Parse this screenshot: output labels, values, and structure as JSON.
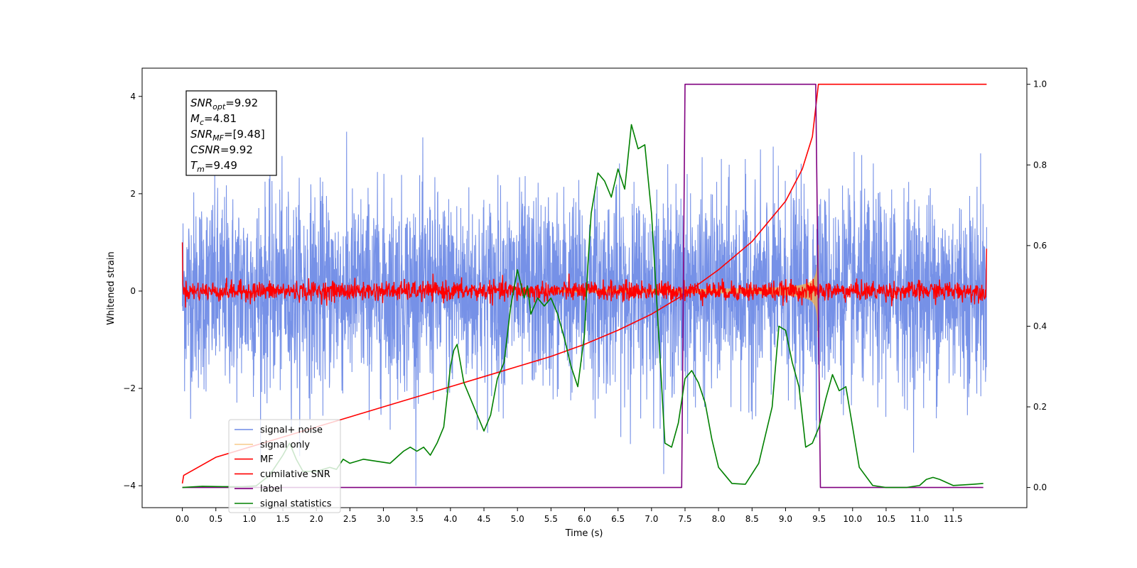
{
  "chart_data": {
    "type": "line",
    "title": "",
    "xlabel": "Time (s)",
    "ylabel": "Whitened strain",
    "xlim": [
      -0.6,
      12.6
    ],
    "ylim": [
      -4.45,
      4.58
    ],
    "y2lim": [
      -0.05,
      1.04
    ],
    "x_ticks": [
      0.0,
      0.5,
      1.0,
      1.5,
      2.0,
      2.5,
      3.0,
      3.5,
      4.0,
      4.5,
      5.0,
      5.5,
      6.0,
      6.5,
      7.0,
      7.5,
      8.0,
      8.5,
      9.0,
      9.5,
      10.0,
      10.5,
      11.0,
      11.5
    ],
    "x_tick_labels": [
      "0.0",
      "0.5",
      "1.0",
      "1.5",
      "2.0",
      "2.5",
      "3.0",
      "3.5",
      "4.0",
      "4.5",
      "5.0",
      "5.5",
      "6.0",
      "6.5",
      "7.0",
      "7.5",
      "8.0",
      "8.5",
      "9.0",
      "9.5",
      "10.0",
      "10.5",
      "11.0",
      "11.5"
    ],
    "y_ticks": [
      -4,
      -2,
      0,
      2,
      4
    ],
    "y_tick_labels": [
      "−4",
      "−2",
      "0",
      "2",
      "4"
    ],
    "y2_ticks": [
      0.0,
      0.2,
      0.4,
      0.6,
      0.8,
      1.0
    ],
    "y2_tick_labels": [
      "0.0",
      "0.2",
      "0.4",
      "0.6",
      "0.8",
      "1.0"
    ],
    "grid": false,
    "legend_position": "lower-left",
    "series": [
      {
        "name": "signal+ noise",
        "axis": "left",
        "color": "#6f8be6",
        "style": "noise",
        "x_range": [
          0.0,
          12.0
        ],
        "sigma": 1.0,
        "max_peak": 4.18,
        "min_peak": -4.0
      },
      {
        "name": "signal only",
        "axis": "left",
        "color": "#f5b04c",
        "style": "chirp",
        "x_range": [
          5.5,
          9.49
        ],
        "amplitude_at_merger": 0.95
      },
      {
        "name": "MF",
        "axis": "left",
        "color": "#ff0000",
        "style": "matched-filter",
        "x_range": [
          0.0,
          12.0
        ],
        "sigma": 0.1,
        "edge_values": [
          1.0,
          0.87
        ]
      },
      {
        "name": "cumilative SNR",
        "axis": "right",
        "color": "#ff0000",
        "points": [
          [
            0.0,
            0.01
          ],
          [
            0.02,
            0.03
          ],
          [
            0.5,
            0.075
          ],
          [
            1.0,
            0.1
          ],
          [
            1.5,
            0.125
          ],
          [
            2.0,
            0.15
          ],
          [
            2.5,
            0.175
          ],
          [
            3.0,
            0.2
          ],
          [
            3.5,
            0.225
          ],
          [
            4.0,
            0.25
          ],
          [
            4.5,
            0.275
          ],
          [
            5.0,
            0.3
          ],
          [
            5.5,
            0.325
          ],
          [
            6.0,
            0.355
          ],
          [
            6.5,
            0.39
          ],
          [
            7.0,
            0.43
          ],
          [
            7.5,
            0.48
          ],
          [
            8.0,
            0.54
          ],
          [
            8.5,
            0.61
          ],
          [
            9.0,
            0.71
          ],
          [
            9.25,
            0.79
          ],
          [
            9.4,
            0.87
          ],
          [
            9.49,
            1.0
          ],
          [
            12.0,
            1.0
          ]
        ]
      },
      {
        "name": "label",
        "axis": "right",
        "color": "#800080",
        "points": [
          [
            0.0,
            0.0
          ],
          [
            7.45,
            0.0
          ],
          [
            7.5,
            1.0
          ],
          [
            9.45,
            1.0
          ],
          [
            9.52,
            0.0
          ],
          [
            11.95,
            0.0
          ]
        ]
      },
      {
        "name": "signal statistics",
        "axis": "right",
        "color": "#008000",
        "points": [
          [
            0.0,
            0.0
          ],
          [
            0.3,
            0.003
          ],
          [
            0.6,
            0.002
          ],
          [
            0.9,
            0.002
          ],
          [
            1.1,
            0.004
          ],
          [
            1.3,
            0.03
          ],
          [
            1.5,
            0.08
          ],
          [
            1.6,
            0.11
          ],
          [
            1.7,
            0.07
          ],
          [
            1.8,
            0.04
          ],
          [
            2.0,
            0.04
          ],
          [
            2.2,
            0.05
          ],
          [
            2.3,
            0.045
          ],
          [
            2.4,
            0.07
          ],
          [
            2.5,
            0.06
          ],
          [
            2.7,
            0.07
          ],
          [
            2.9,
            0.065
          ],
          [
            3.1,
            0.06
          ],
          [
            3.2,
            0.075
          ],
          [
            3.3,
            0.09
          ],
          [
            3.4,
            0.1
          ],
          [
            3.5,
            0.09
          ],
          [
            3.6,
            0.1
          ],
          [
            3.7,
            0.08
          ],
          [
            3.8,
            0.11
          ],
          [
            3.9,
            0.15
          ],
          [
            4.0,
            0.3
          ],
          [
            4.05,
            0.34
          ],
          [
            4.1,
            0.355
          ],
          [
            4.2,
            0.26
          ],
          [
            4.3,
            0.22
          ],
          [
            4.4,
            0.18
          ],
          [
            4.5,
            0.14
          ],
          [
            4.6,
            0.18
          ],
          [
            4.7,
            0.27
          ],
          [
            4.8,
            0.31
          ],
          [
            4.9,
            0.45
          ],
          [
            5.0,
            0.54
          ],
          [
            5.1,
            0.47
          ],
          [
            5.15,
            0.5
          ],
          [
            5.2,
            0.43
          ],
          [
            5.3,
            0.47
          ],
          [
            5.4,
            0.45
          ],
          [
            5.5,
            0.47
          ],
          [
            5.6,
            0.43
          ],
          [
            5.7,
            0.37
          ],
          [
            5.8,
            0.3
          ],
          [
            5.9,
            0.25
          ],
          [
            6.0,
            0.38
          ],
          [
            6.05,
            0.55
          ],
          [
            6.1,
            0.68
          ],
          [
            6.2,
            0.78
          ],
          [
            6.3,
            0.76
          ],
          [
            6.4,
            0.72
          ],
          [
            6.5,
            0.79
          ],
          [
            6.6,
            0.74
          ],
          [
            6.7,
            0.9
          ],
          [
            6.8,
            0.84
          ],
          [
            6.9,
            0.85
          ],
          [
            7.0,
            0.68
          ],
          [
            7.1,
            0.4
          ],
          [
            7.2,
            0.11
          ],
          [
            7.3,
            0.1
          ],
          [
            7.4,
            0.16
          ],
          [
            7.5,
            0.27
          ],
          [
            7.6,
            0.29
          ],
          [
            7.7,
            0.26
          ],
          [
            7.8,
            0.21
          ],
          [
            7.9,
            0.12
          ],
          [
            8.0,
            0.05
          ],
          [
            8.2,
            0.01
          ],
          [
            8.4,
            0.008
          ],
          [
            8.6,
            0.06
          ],
          [
            8.8,
            0.2
          ],
          [
            8.9,
            0.4
          ],
          [
            9.0,
            0.39
          ],
          [
            9.1,
            0.31
          ],
          [
            9.2,
            0.25
          ],
          [
            9.3,
            0.1
          ],
          [
            9.4,
            0.11
          ],
          [
            9.5,
            0.15
          ],
          [
            9.6,
            0.22
          ],
          [
            9.7,
            0.28
          ],
          [
            9.8,
            0.24
          ],
          [
            9.9,
            0.25
          ],
          [
            10.0,
            0.15
          ],
          [
            10.1,
            0.05
          ],
          [
            10.3,
            0.005
          ],
          [
            10.5,
            0.0
          ],
          [
            10.8,
            0.0
          ],
          [
            11.0,
            0.005
          ],
          [
            11.1,
            0.02
          ],
          [
            11.2,
            0.025
          ],
          [
            11.3,
            0.02
          ],
          [
            11.5,
            0.005
          ],
          [
            11.8,
            0.008
          ],
          [
            11.95,
            0.01
          ]
        ]
      }
    ],
    "legend": [
      "signal+ noise",
      "signal only",
      "MF",
      "cumilative SNR",
      "label",
      "signal statistics"
    ],
    "annotations": [
      {
        "base": "SNR",
        "sub": "opt",
        "value": "=9.92"
      },
      {
        "base": "M",
        "sub": "c",
        "value": "=4.81"
      },
      {
        "base": "SNR",
        "sub": "MF",
        "value": "=[9.48]"
      },
      {
        "base": "CSNR",
        "sub": "",
        "value": "=9.92"
      },
      {
        "base": "T",
        "sub": "m",
        "value": "=9.49"
      }
    ]
  }
}
